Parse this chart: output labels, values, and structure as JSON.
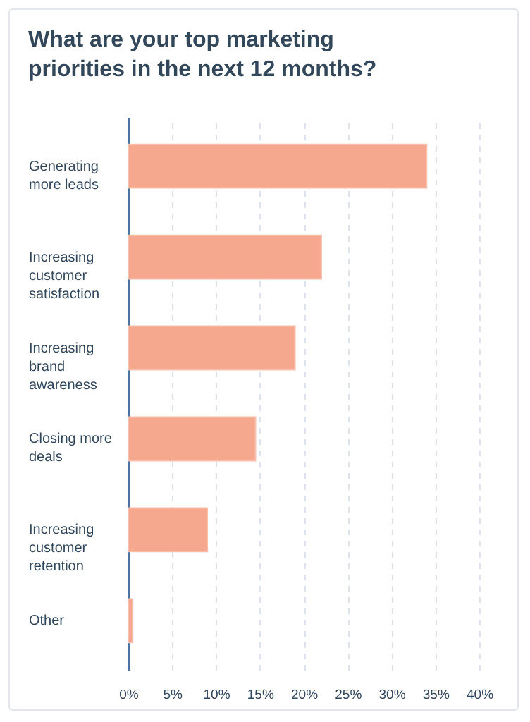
{
  "chart_data": {
    "type": "bar",
    "orientation": "horizontal",
    "title": "What are your top marketing priorities in the next 12 months?",
    "categories": [
      "Generating more leads",
      "Increasing customer satisfaction",
      "Increasing brand awareness",
      "Closing more deals",
      "Increasing customer retention",
      "Other"
    ],
    "values": [
      34,
      22,
      19,
      14.5,
      9,
      0.5
    ],
    "color": "#f5a88e",
    "xlim": [
      0,
      40
    ],
    "xticks": [
      {
        "value": 0,
        "label": "0%"
      },
      {
        "value": 5,
        "label": "5%"
      },
      {
        "value": 10,
        "label": "10%"
      },
      {
        "value": 15,
        "label": "15%"
      },
      {
        "value": 20,
        "label": "20%"
      },
      {
        "value": 25,
        "label": "25%"
      },
      {
        "value": 30,
        "label": "30%"
      },
      {
        "value": 35,
        "label": "35%"
      },
      {
        "value": 40,
        "label": "40%"
      }
    ],
    "grid": "x"
  }
}
